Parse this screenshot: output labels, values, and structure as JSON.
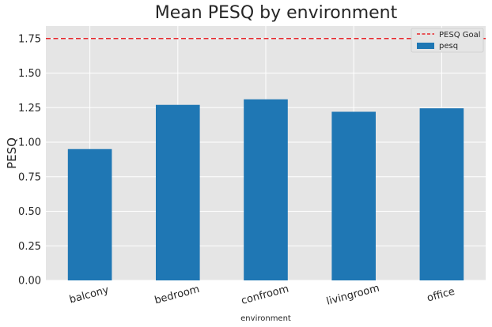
{
  "chart_data": {
    "type": "bar",
    "title": "Mean PESQ by environment",
    "xlabel": "environment",
    "ylabel": "PESQ",
    "categories": [
      "balcony",
      "bedroom",
      "confroom",
      "livingroom",
      "office"
    ],
    "series": [
      {
        "name": "pesq",
        "values": [
          0.95,
          1.27,
          1.31,
          1.22,
          1.245
        ],
        "color": "#1f77b4"
      }
    ],
    "reference_line": {
      "name": "PESQ Goal",
      "value": 1.75,
      "color": "#e8262b",
      "style": "dashed"
    },
    "ylim": [
      0,
      1.84
    ],
    "yticks": [
      "0.00",
      "0.25",
      "0.50",
      "0.75",
      "1.00",
      "1.25",
      "1.50",
      "1.75"
    ],
    "grid": true,
    "legend_position": "top-right",
    "background": "#e5e5e5"
  }
}
